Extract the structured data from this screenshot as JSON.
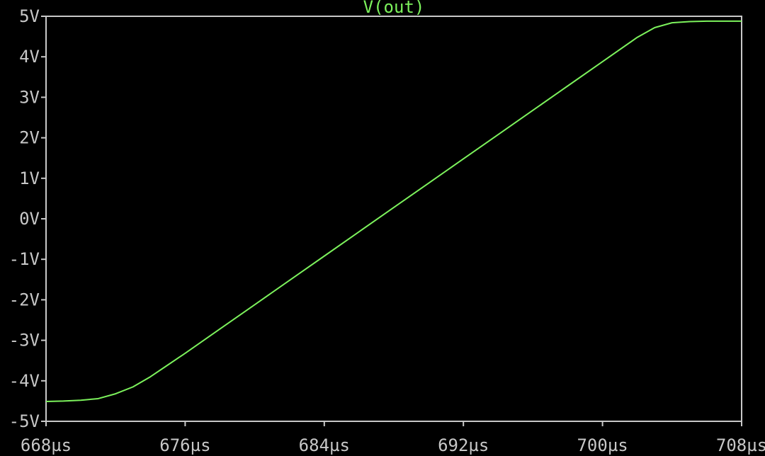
{
  "colors": {
    "background": "#000000",
    "frame": "#c8c8c8",
    "labels": "#c8c8c8",
    "trace": "#7cf25c"
  },
  "chart_data": {
    "type": "line",
    "title": "V(out)",
    "xlabel": "",
    "ylabel": "",
    "grid": false,
    "xlim": [
      668,
      708
    ],
    "ylim": [
      -5,
      5
    ],
    "x_ticks": [
      "668µs",
      "676µs",
      "684µs",
      "692µs",
      "700µs",
      "708µs"
    ],
    "y_ticks": [
      "5V",
      "4V",
      "3V",
      "2V",
      "1V",
      "0V",
      "-1V",
      "-2V",
      "-3V",
      "-4V",
      "-5V"
    ],
    "series": [
      {
        "name": "V(out)",
        "color": "#7cf25c",
        "x_unit": "µs",
        "y_unit": "V",
        "points": [
          [
            668,
            -4.51
          ],
          [
            669,
            -4.5
          ],
          [
            670,
            -4.48
          ],
          [
            671,
            -4.44
          ],
          [
            672,
            -4.32
          ],
          [
            673,
            -4.15
          ],
          [
            674,
            -3.9
          ],
          [
            675,
            -3.61
          ],
          [
            676,
            -3.32
          ],
          [
            678,
            -2.72
          ],
          [
            680,
            -2.12
          ],
          [
            682,
            -1.52
          ],
          [
            684,
            -0.92
          ],
          [
            686,
            -0.32
          ],
          [
            688,
            0.28
          ],
          [
            690,
            0.88
          ],
          [
            692,
            1.48
          ],
          [
            694,
            2.08
          ],
          [
            696,
            2.68
          ],
          [
            698,
            3.28
          ],
          [
            700,
            3.88
          ],
          [
            702,
            4.48
          ],
          [
            703,
            4.72
          ],
          [
            704,
            4.84
          ],
          [
            705,
            4.87
          ],
          [
            706,
            4.88
          ],
          [
            707,
            4.88
          ],
          [
            708,
            4.88
          ]
        ]
      }
    ]
  }
}
